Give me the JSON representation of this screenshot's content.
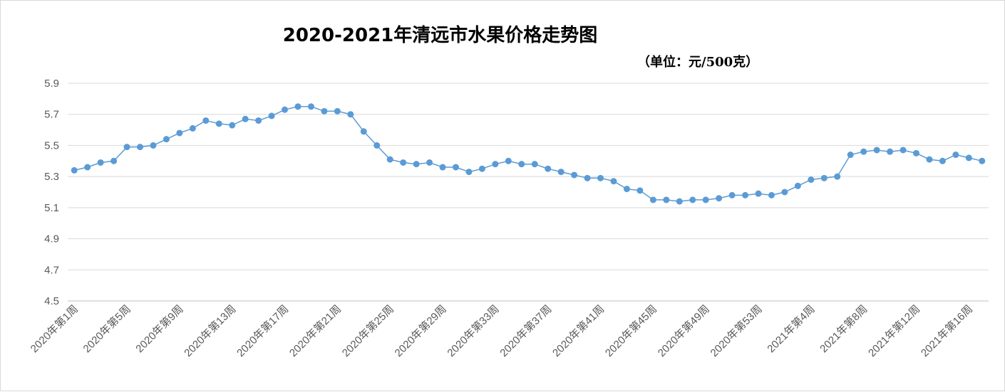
{
  "chart_data": {
    "type": "line",
    "title": "2020-2021年清远市水果价格走势图",
    "subtitle": "（单位：元/500克）",
    "ylim": [
      4.5,
      5.9
    ],
    "yticks": [
      4.5,
      4.7,
      4.9,
      5.1,
      5.3,
      5.5,
      5.7,
      5.9
    ],
    "grid": true,
    "legend": "none",
    "line_color": "#5B9BD5",
    "x_labels": [
      "2020年第1周",
      "2020年第5周",
      "2020年第9周",
      "2020年第13周",
      "2020年第17周",
      "2020年第21周",
      "2020年第25周",
      "2020年第29周",
      "2020年第33周",
      "2020年第37周",
      "2020年第41周",
      "2020年第45周",
      "2020年第49周",
      "2020年第53周",
      "2021年第4周",
      "2021年第8周",
      "2021年第12周",
      "2021年第16周"
    ],
    "series": [
      {
        "values": [
          5.34,
          5.36,
          5.39,
          5.4,
          5.49,
          5.49,
          5.5,
          5.54,
          5.58,
          5.61,
          5.66,
          5.64,
          5.63,
          5.67,
          5.66,
          5.69,
          5.73,
          5.75,
          5.75,
          5.72,
          5.72,
          5.7,
          5.59,
          5.5,
          5.41,
          5.39,
          5.38,
          5.39,
          5.36,
          5.36,
          5.33,
          5.35,
          5.38,
          5.4,
          5.38,
          5.38,
          5.35,
          5.33,
          5.31,
          5.29,
          5.29,
          5.27,
          5.22,
          5.21,
          5.15,
          5.15,
          5.14,
          5.15,
          5.15,
          5.16,
          5.18,
          5.18,
          5.19,
          5.18,
          5.2,
          5.24,
          5.28,
          5.29,
          5.3,
          5.44,
          5.46,
          5.47,
          5.46,
          5.47,
          5.45,
          5.41,
          5.4,
          5.44,
          5.42,
          5.4
        ]
      }
    ]
  }
}
